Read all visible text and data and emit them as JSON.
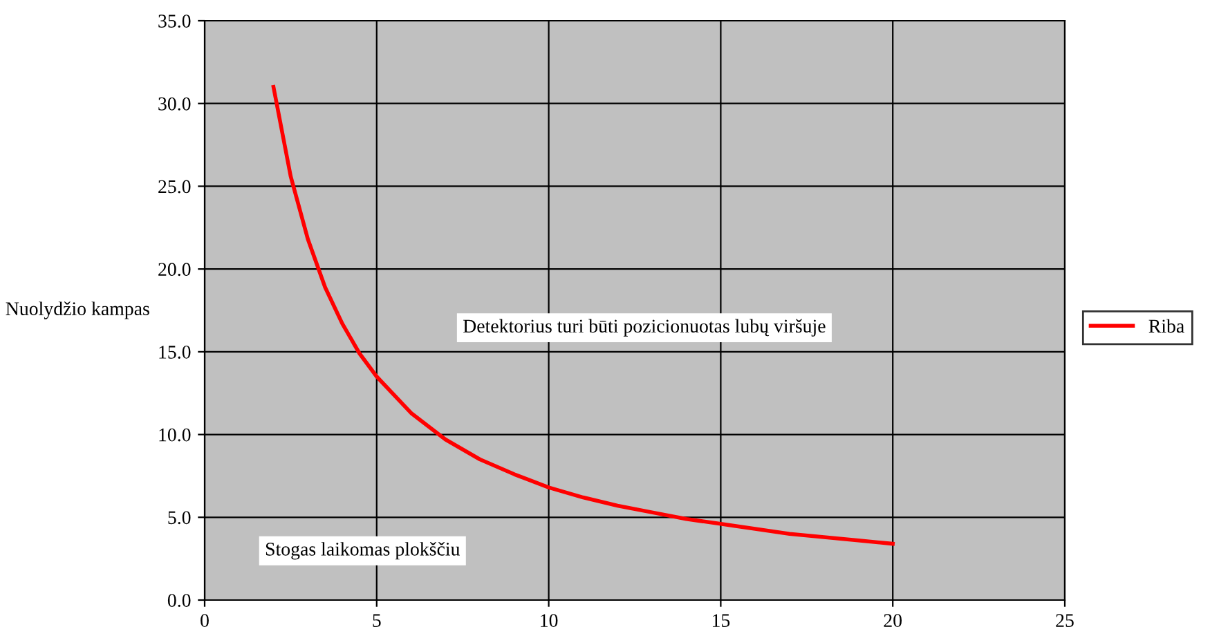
{
  "chart_data": {
    "type": "line",
    "ylabel": "Nuolydžio kampas",
    "x": [
      2,
      2.5,
      3,
      3.5,
      4,
      4.5,
      5,
      6,
      7,
      8,
      9,
      10,
      11,
      12,
      13,
      14,
      15,
      16,
      17,
      18,
      19,
      20
    ],
    "series": [
      {
        "name": "Riba",
        "color": "#ff0000",
        "values": [
          31.0,
          25.6,
          21.8,
          18.9,
          16.7,
          14.9,
          13.5,
          11.3,
          9.7,
          8.5,
          7.6,
          6.8,
          6.2,
          5.7,
          5.3,
          4.9,
          4.6,
          4.3,
          4.0,
          3.8,
          3.6,
          3.4
        ]
      }
    ],
    "xlim": [
      0,
      25
    ],
    "xticks": [
      0,
      5,
      10,
      15,
      20,
      25
    ],
    "ylim": [
      0,
      35
    ],
    "yticks": [
      {
        "value": 0,
        "label": "0.0"
      },
      {
        "value": 5,
        "label": "5.0"
      },
      {
        "value": 10,
        "label": "10.0"
      },
      {
        "value": 15,
        "label": "15.0"
      },
      {
        "value": 20,
        "label": "20.0"
      },
      {
        "value": 25,
        "label": "25.0"
      },
      {
        "value": 30,
        "label": "30.0"
      },
      {
        "value": 35,
        "label": "35.0"
      }
    ],
    "annotations": [
      "Detektorius turi būti pozicionuotas lubų viršuje",
      "Stogas laikomas plokščiu"
    ],
    "grid": true,
    "legend": "right",
    "marker": "none",
    "line_style": "solid"
  }
}
